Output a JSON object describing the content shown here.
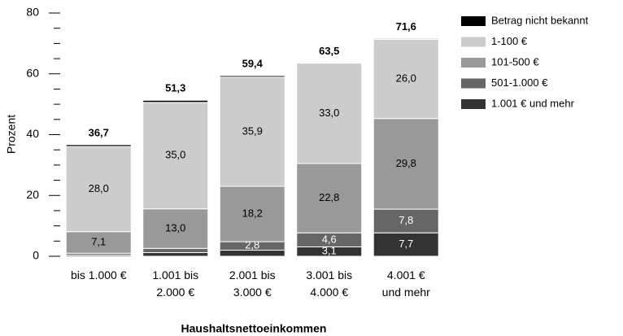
{
  "chart_data": {
    "type": "stacked_bar",
    "y_label": "Prozent",
    "x_label": "Haushaltsnettoeinkommen",
    "categories": [
      "bis 1.000 €",
      "1.001 bis\n2.000 €",
      "2.001 bis\n3.000 €",
      "3.001 bis\n4.000 €",
      "4.001 €\nund mehr"
    ],
    "series": [
      {
        "name": "1.001 € und mehr",
        "color": "#333333",
        "label_color": "#ffffff",
        "values": [
          0.4,
          1.2,
          2.0,
          3.1,
          7.7
        ],
        "value_labels": [
          null,
          null,
          null,
          "3,1",
          "7,7"
        ]
      },
      {
        "name": "501-1.000 €",
        "color": "#666666",
        "label_color": "#ffffff",
        "values": [
          0.6,
          1.4,
          2.8,
          4.6,
          7.8
        ],
        "value_labels": [
          null,
          null,
          "2,8",
          "4,6",
          "7,8"
        ]
      },
      {
        "name": "101-500 €",
        "color": "#999999",
        "label_color": "#000000",
        "values": [
          7.1,
          13.0,
          18.2,
          22.8,
          29.8
        ],
        "value_labels": [
          "7,1",
          "13,0",
          "18,2",
          "22,8",
          "29,8"
        ]
      },
      {
        "name": "1-100 €",
        "color": "#cccccc",
        "label_color": "#000000",
        "values": [
          28.0,
          35.0,
          35.9,
          33.0,
          26.0
        ],
        "value_labels": [
          "28,0",
          "35,0",
          "35,9",
          "33,0",
          "26,0"
        ]
      },
      {
        "name": "Betrag nicht bekannt",
        "color": "#000000",
        "label_color": "#ffffff",
        "values": [
          0.6,
          0.7,
          0.5,
          0,
          0.3
        ],
        "value_labels": [
          null,
          null,
          null,
          null,
          null
        ]
      }
    ],
    "totals": [
      36.7,
      51.3,
      59.4,
      63.5,
      71.6
    ],
    "total_labels": [
      "36,7",
      "51,3",
      "59,4",
      "63,5",
      "71,6"
    ],
    "ylim": [
      0,
      80
    ],
    "yticks": [
      0,
      20,
      40,
      60,
      80
    ],
    "yminor_ticks": [
      5,
      10,
      15,
      25,
      30,
      35,
      45,
      50,
      55,
      65,
      70,
      75
    ],
    "legend": "right"
  }
}
